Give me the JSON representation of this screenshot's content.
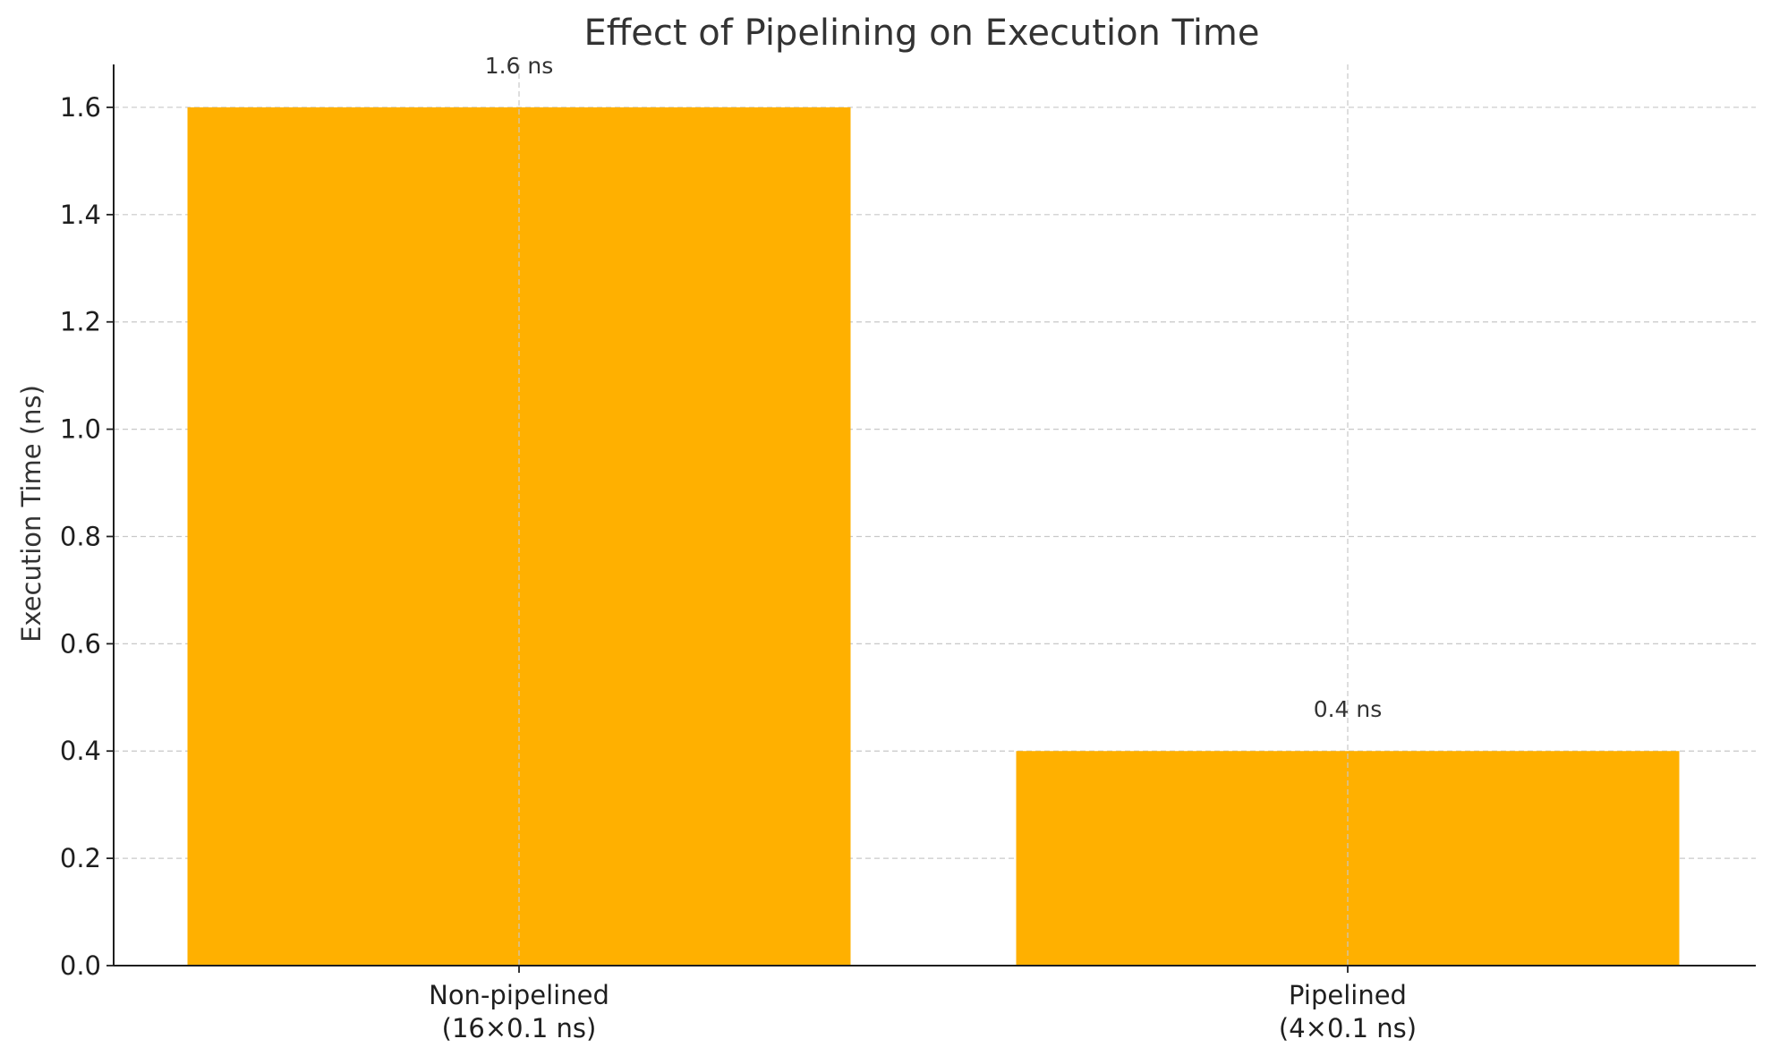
{
  "chart_data": {
    "type": "bar",
    "title": "Effect of Pipelining on Execution Time",
    "ylabel": "Execution Time (ns)",
    "xlabel": "",
    "categories": [
      [
        "Non-pipelined",
        "(16×0.1 ns)"
      ],
      [
        "Pipelined",
        "(4×0.1 ns)"
      ]
    ],
    "values": [
      1.6,
      0.4
    ],
    "data_labels": [
      "1.6 ns",
      "0.4 ns"
    ],
    "ylim": [
      0,
      1.68
    ],
    "yticks": [
      0.0,
      0.2,
      0.4,
      0.6,
      0.8,
      1.0,
      1.2,
      1.4,
      1.6
    ],
    "ytick_labels": [
      "0.0",
      "0.2",
      "0.4",
      "0.6",
      "0.8",
      "1.0",
      "1.2",
      "1.4",
      "1.6"
    ],
    "grid": true,
    "bar_color": "#FFB000",
    "grid_color": "#C8C8C8"
  }
}
